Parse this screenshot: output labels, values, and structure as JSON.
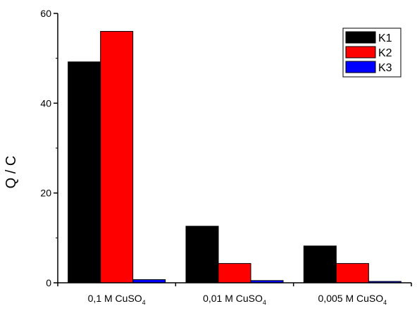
{
  "chart_data": {
    "type": "bar",
    "categories": [
      {
        "main": "0,1 M CuSO",
        "sub": "4"
      },
      {
        "main": "0,01 M CuSO",
        "sub": "4"
      },
      {
        "main": "0,005 M CuSO",
        "sub": "4"
      }
    ],
    "series": [
      {
        "name": "K1",
        "color": "#000000",
        "values": [
          49.2,
          12.6,
          8.2
        ]
      },
      {
        "name": "K2",
        "color": "#ff0000",
        "values": [
          56.0,
          4.3,
          4.3
        ]
      },
      {
        "name": "K3",
        "color": "#0000ff",
        "values": [
          0.7,
          0.5,
          0.3
        ]
      }
    ],
    "title": "",
    "xlabel": "",
    "ylabel": "Q / C",
    "ylim": [
      0,
      60
    ],
    "yticks": [
      0,
      20,
      40,
      60
    ],
    "grid": false,
    "legend_position": "top-right"
  }
}
